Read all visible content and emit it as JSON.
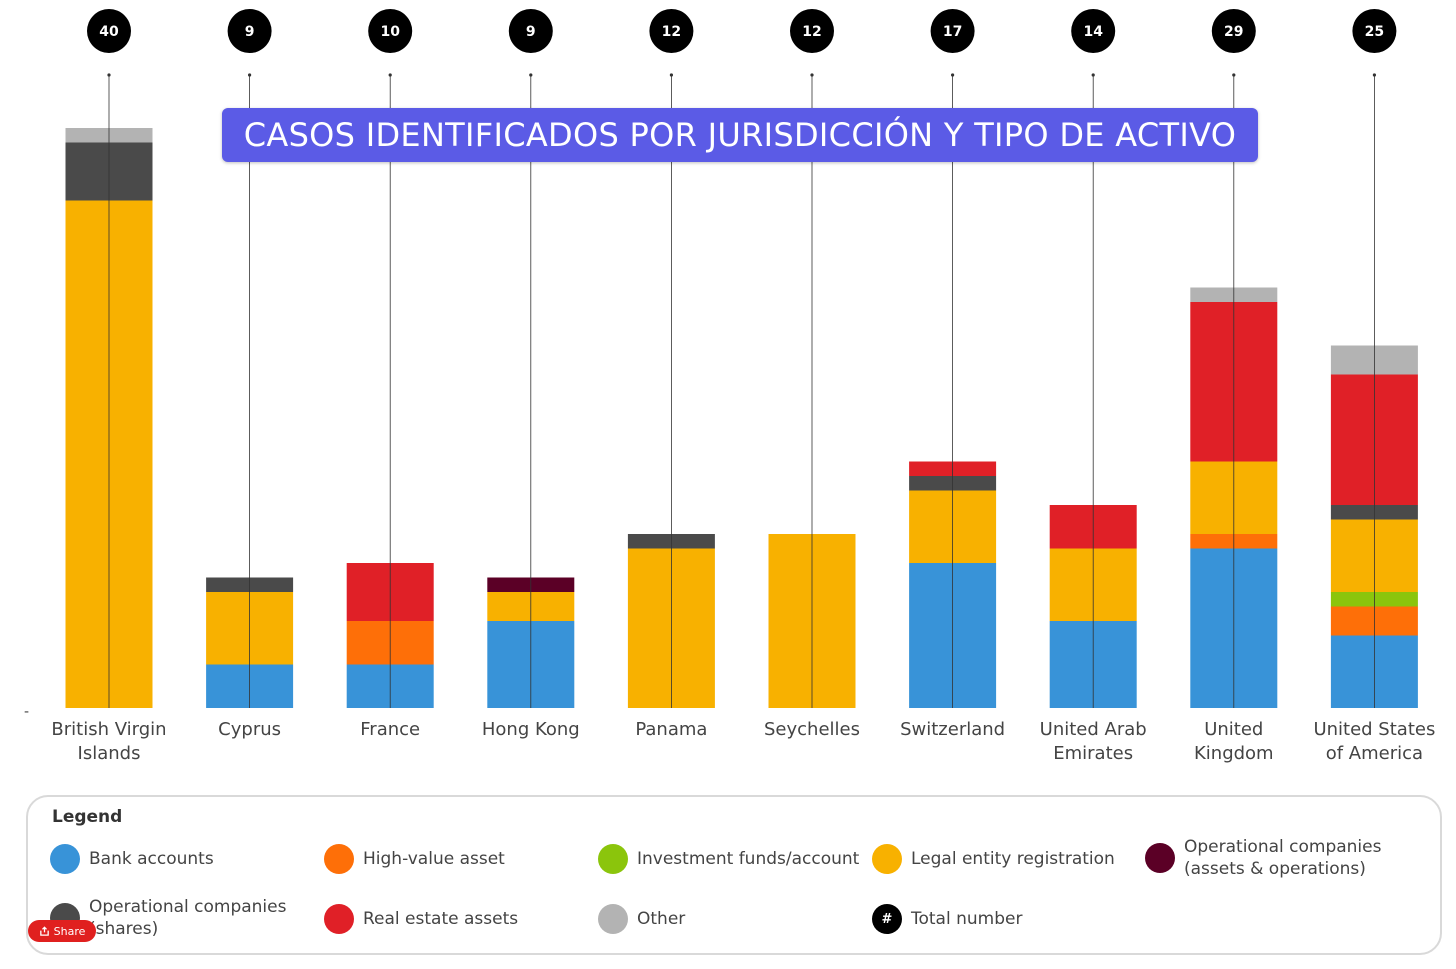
{
  "chart_data": {
    "type": "bar",
    "stacked": true,
    "title": "CASOS IDENTIFICADOS POR JURISDICCIÓN Y TIPO DE ACTIVO",
    "categories": [
      "British Virgin Islands",
      "Cyprus",
      "France",
      "Hong Kong",
      "Panama",
      "Seychelles",
      "Switzerland",
      "United Arab Emirates",
      "United Kingdom",
      "United States of America"
    ],
    "totals": [
      40,
      9,
      10,
      9,
      12,
      12,
      17,
      14,
      29,
      25
    ],
    "series": [
      {
        "name": "Bank accounts",
        "color": "#3893d8",
        "values": [
          0,
          3,
          3,
          6,
          0,
          0,
          10,
          6,
          11,
          5
        ]
      },
      {
        "name": "High-value asset",
        "color": "#fe6f08",
        "values": [
          0,
          0,
          3,
          0,
          0,
          0,
          0,
          0,
          1,
          2
        ]
      },
      {
        "name": "Investment funds/account",
        "color": "#8bc50c",
        "values": [
          0,
          0,
          0,
          0,
          0,
          0,
          0,
          0,
          0,
          1
        ]
      },
      {
        "name": "Legal entity registration",
        "color": "#f8b100",
        "values": [
          35,
          5,
          0,
          2,
          11,
          12,
          5,
          5,
          5,
          5
        ]
      },
      {
        "name": "Operational companies (assets & operations)",
        "color": "#5b0026",
        "values": [
          0,
          0,
          0,
          1,
          0,
          0,
          0,
          0,
          0,
          0
        ]
      },
      {
        "name": "Operational companies (shares)",
        "color": "#4a4a4a",
        "values": [
          4,
          1,
          0,
          0,
          1,
          0,
          1,
          0,
          0,
          1
        ]
      },
      {
        "name": "Real estate assets",
        "color": "#e02027",
        "values": [
          0,
          0,
          4,
          0,
          0,
          0,
          1,
          3,
          11,
          9
        ]
      },
      {
        "name": "Other",
        "color": "#b3b3b3",
        "values": [
          1,
          0,
          0,
          0,
          0,
          0,
          0,
          0,
          1,
          2
        ]
      }
    ],
    "grid": false,
    "legend_position": "bottom"
  },
  "legend": {
    "heading": "Legend",
    "items": [
      {
        "label": "Bank accounts",
        "color": "#3893d8"
      },
      {
        "label": "High-value asset",
        "color": "#fe6f08"
      },
      {
        "label": "Investment funds/account",
        "color": "#8bc50c"
      },
      {
        "label": "Legal entity registration",
        "color": "#f8b100"
      },
      {
        "label": "Operational companies (assets & operations)",
        "color": "#5b0026"
      },
      {
        "label": "Operational companies (shares)",
        "color": "#4a4a4a"
      },
      {
        "label": "Real estate assets",
        "color": "#e02027"
      },
      {
        "label": "Other",
        "color": "#b3b3b3"
      },
      {
        "label": "Total number",
        "color": "#000000",
        "symbol": "#"
      }
    ]
  },
  "axis_dash": "-",
  "share": {
    "label": "Share",
    "icon": "share-icon"
  }
}
